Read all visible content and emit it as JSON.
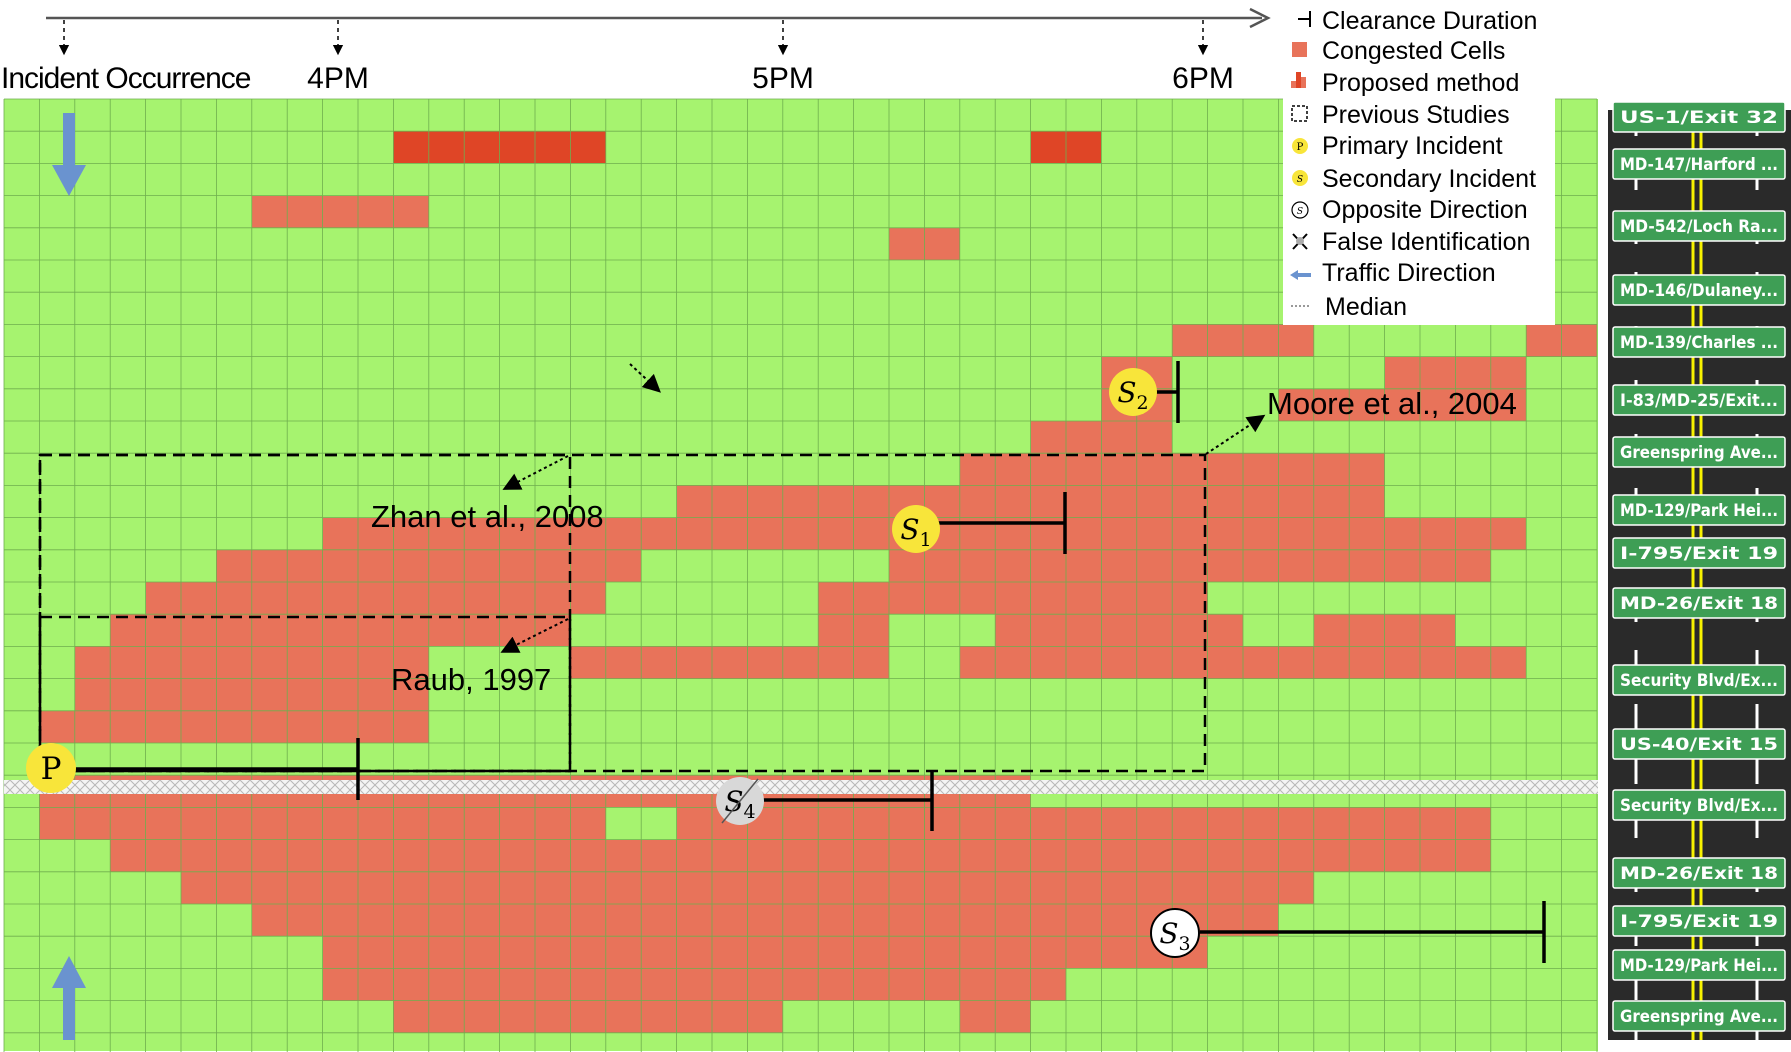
{
  "timeline": {
    "incident_label": "Incident Occurrence",
    "ticks": [
      "4PM",
      "5PM",
      "6PM"
    ]
  },
  "legend": {
    "items": [
      {
        "icon": "clearance-duration-icon",
        "label": "Clearance Duration"
      },
      {
        "icon": "congested-cells-icon",
        "label": "Congested Cells"
      },
      {
        "icon": "proposed-method-icon",
        "label": "Proposed method"
      },
      {
        "icon": "previous-studies-icon",
        "label": "Previous Studies"
      },
      {
        "icon": "primary-incident-icon",
        "label": "Primary Incident"
      },
      {
        "icon": "secondary-incident-icon",
        "label": "Secondary Incident"
      },
      {
        "icon": "opposite-direction-icon",
        "label": "Opposite Direction"
      },
      {
        "icon": "false-identification-icon",
        "label": "False Identification"
      },
      {
        "icon": "traffic-direction-icon",
        "label": "Traffic Direction"
      },
      {
        "icon": "median-icon",
        "label": "Median"
      }
    ]
  },
  "studies": {
    "zhan": "Zhan et al., 2008",
    "raub": "Raub, 1997",
    "moore": "Moore et al., 2004"
  },
  "incidents": {
    "primary": "P",
    "s1": "S1",
    "s2": "S2",
    "s3": "S3",
    "s4": "S4"
  },
  "exits": [
    "US-1/Exit 32",
    "MD-147/Harford ...",
    "MD-542/Loch Ra...",
    "MD-146/Dulaney...",
    "MD-139/Charles ...",
    "I-83/MD-25/Exit...",
    "Greenspring Ave...",
    "MD-129/Park Hei...",
    "I-795/Exit 19",
    "MD-26/Exit 18",
    "Security Blvd/Ex...",
    "US-40/Exit 15",
    "Security Blvd/Ex...",
    "MD-26/Exit 18",
    "I-795/Exit 19",
    "MD-129/Park Hei...",
    "Greenspring Ave..."
  ],
  "colors": {
    "free_flow": "#a6f36f",
    "congested": "#e8735a",
    "proposed": "#df4526",
    "grid_line": "#6fae4e",
    "incident_yellow": "#f8e53a",
    "direction_arrow": "#6a93cf",
    "sign_green": "#3e9e55",
    "road_dark": "#2a2a2a"
  }
}
